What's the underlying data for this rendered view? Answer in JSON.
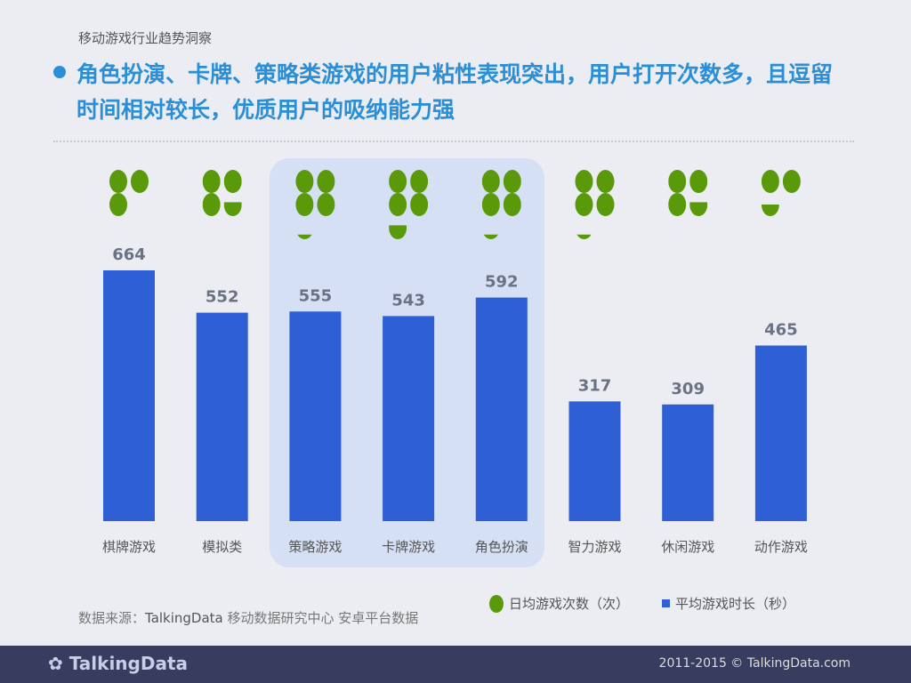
{
  "header": {
    "section": "移动游戏行业趋势洞察",
    "title": "角色扮演、卡牌、策略类游戏的用户粘性表现突出，用户打开次数多，且逗留时间相对较长，优质用户的吸纳能力强"
  },
  "chart_data": {
    "type": "bar",
    "categories": [
      "棋牌游戏",
      "模拟类",
      "策略游戏",
      "卡牌游戏",
      "角色扮演",
      "智力游戏",
      "休闲游戏",
      "动作游戏"
    ],
    "series": [
      {
        "name": "平均游戏时长（秒）",
        "values": [
          664,
          552,
          555,
          543,
          592,
          317,
          309,
          465
        ],
        "color": "#2f5fd4"
      },
      {
        "name": "日均游戏次数（次）",
        "values": [
          3,
          3.6,
          4.2,
          4.6,
          4.2,
          4.2,
          3.6,
          2.5
        ],
        "color": "#5a9a0a",
        "style": "pictogram"
      }
    ],
    "highlighted": [
      "策略游戏",
      "卡牌游戏",
      "角色扮演"
    ],
    "legend": "bottom-right",
    "grid": false
  },
  "source": {
    "label": "数据来源：",
    "brand": "TalkingData",
    "rest": " 移动数据研究中心 安卓平台数据"
  },
  "footer": {
    "logo": "TalkingData",
    "copyright": "2011-2015 © TalkingData.com"
  }
}
